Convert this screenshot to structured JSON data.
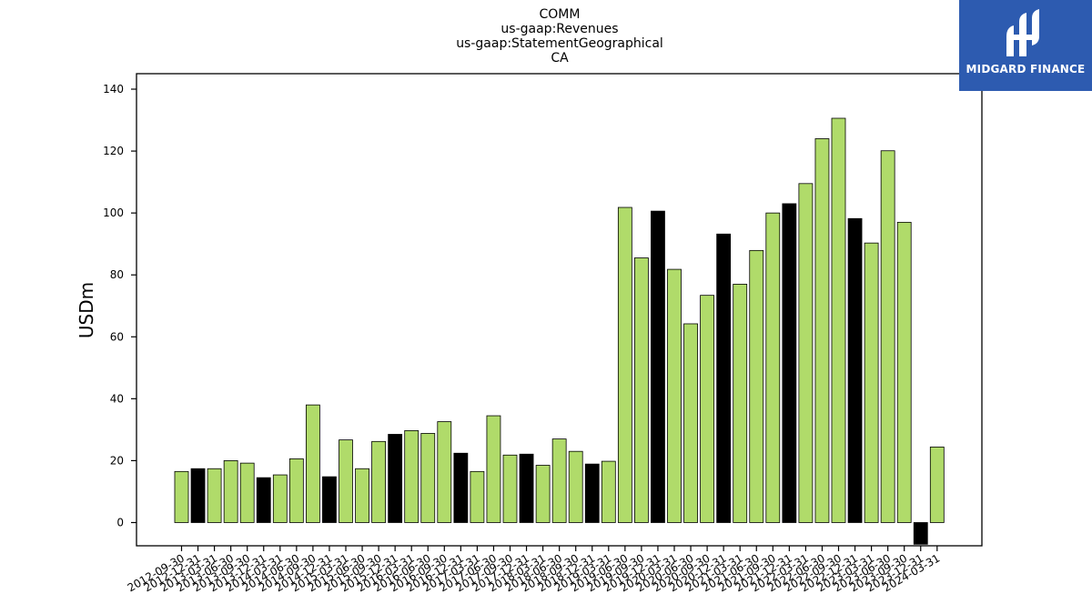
{
  "logo": {
    "text": "MIDGARD FINANCE",
    "bg_color": "#2d5bb0"
  },
  "colors": {
    "positive_bar": "#b0db6a",
    "highlight_bar": "#000000",
    "edge": "#000000"
  },
  "chart_data": {
    "type": "bar",
    "title_lines": [
      "COMM",
      "us-gaap:Revenues",
      "us-gaap:StatementGeographical",
      "CA"
    ],
    "xlabel": "",
    "ylabel": "USDm",
    "ylim": [
      -7.5,
      145
    ],
    "yticks": [
      0,
      20,
      40,
      60,
      80,
      100,
      120,
      140
    ],
    "grid": false,
    "categories": [
      "2012-09-30",
      "2012-12-31",
      "2013-03-31",
      "2013-06-30",
      "2013-09-30",
      "2013-12-31",
      "2014-03-31",
      "2014-06-30",
      "2014-09-30",
      "2014-12-31",
      "2015-03-31",
      "2015-06-30",
      "2015-09-30",
      "2015-12-31",
      "2016-03-31",
      "2016-06-30",
      "2016-09-30",
      "2016-12-31",
      "2017-03-31",
      "2017-06-30",
      "2017-09-30",
      "2017-12-31",
      "2018-03-31",
      "2018-06-30",
      "2018-09-30",
      "2018-12-31",
      "2019-03-31",
      "2019-06-30",
      "2019-09-30",
      "2019-12-31",
      "2020-03-31",
      "2020-06-30",
      "2020-09-30",
      "2020-12-31",
      "2021-03-31",
      "2021-06-30",
      "2021-09-30",
      "2021-12-31",
      "2022-03-31",
      "2022-06-30",
      "2022-09-30",
      "2022-12-31",
      "2023-03-31",
      "2023-06-30",
      "2023-09-30",
      "2023-12-31",
      "2024-03-31"
    ],
    "values": [
      16.5,
      17.4,
      17.4,
      20.0,
      19.2,
      14.5,
      15.4,
      20.6,
      38.0,
      14.8,
      26.7,
      17.4,
      26.2,
      28.5,
      29.7,
      28.8,
      32.6,
      22.4,
      16.5,
      34.5,
      21.8,
      22.1,
      18.5,
      27.0,
      23.0,
      18.9,
      19.8,
      101.8,
      85.5,
      100.6,
      81.8,
      64.2,
      73.4,
      93.2,
      77.0,
      87.9,
      100.0,
      103.0,
      109.5,
      124.0,
      130.6,
      98.2,
      90.3,
      120.1,
      97.0,
      -7.0,
      24.4
    ],
    "highlight": [
      false,
      true,
      false,
      false,
      false,
      true,
      false,
      false,
      false,
      true,
      false,
      false,
      false,
      true,
      false,
      false,
      false,
      true,
      false,
      false,
      false,
      true,
      false,
      false,
      false,
      true,
      false,
      false,
      false,
      true,
      false,
      false,
      false,
      true,
      false,
      false,
      false,
      true,
      false,
      false,
      false,
      true,
      false,
      false,
      false,
      true,
      false
    ]
  }
}
